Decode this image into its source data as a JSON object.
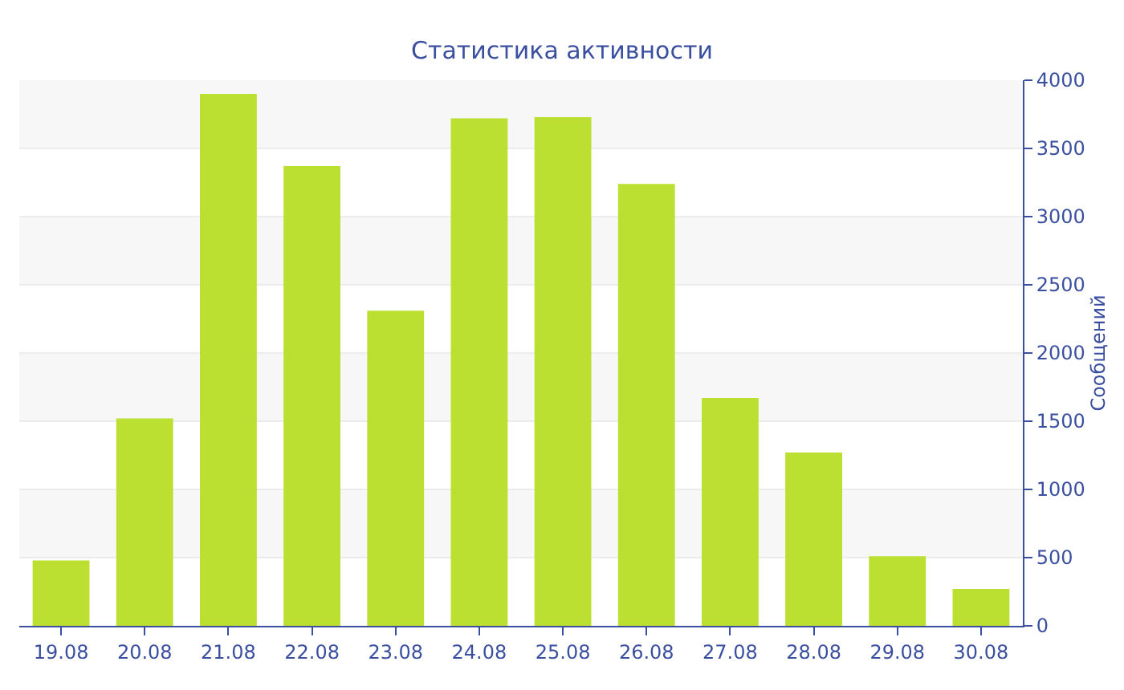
{
  "chart_data": {
    "type": "bar",
    "title": "Статистика активности",
    "ylabel": "Сообщений",
    "categories": [
      "19.08",
      "20.08",
      "21.08",
      "22.08",
      "23.08",
      "24.08",
      "25.08",
      "26.08",
      "27.08",
      "28.08",
      "29.08",
      "30.08"
    ],
    "values": [
      480,
      1520,
      3900,
      3370,
      2310,
      3720,
      3730,
      3240,
      1670,
      1270,
      510,
      270
    ],
    "color": "#bce032",
    "ylim": [
      0,
      4000
    ],
    "yticks": [
      0,
      500,
      1000,
      1500,
      2000,
      2500,
      3000,
      3500,
      4000
    ],
    "grid": "y"
  }
}
